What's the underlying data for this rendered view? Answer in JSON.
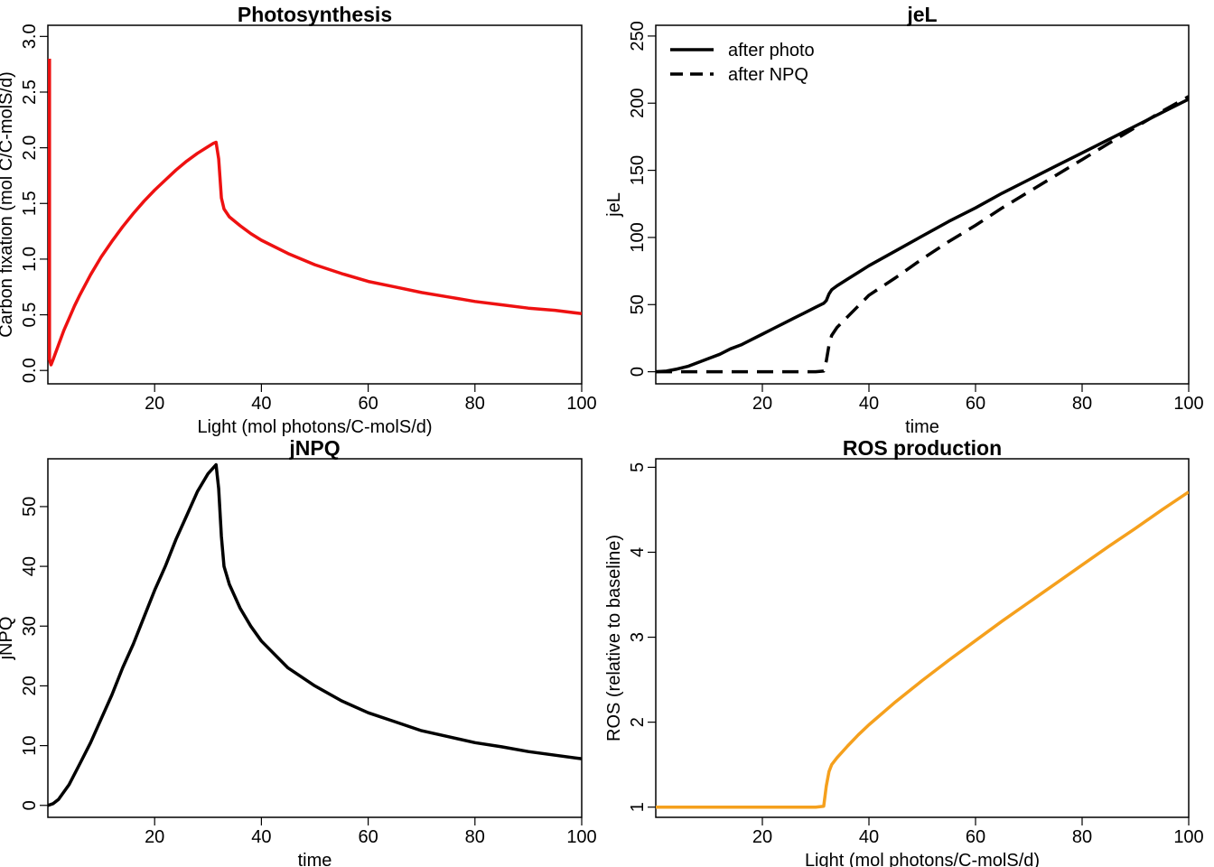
{
  "chart_data": [
    {
      "type": "line",
      "title": "Photosynthesis",
      "xlabel": "Light (mol photons/C-molS/d)",
      "ylabel": "Carbon fixation (mol C/C-molS/d)",
      "xlim": [
        0,
        100
      ],
      "ylim": [
        0,
        3.0
      ],
      "xticks": [
        "20",
        "40",
        "60",
        "80",
        "100"
      ],
      "yticks": [
        "0.0",
        "0.5",
        "1.0",
        "1.5",
        "2.0",
        "2.5",
        "3.0"
      ],
      "grid": false,
      "series": [
        {
          "color": "#ee1111",
          "style": "solid",
          "x": [
            0.3,
            0.3,
            0.6,
            1,
            2,
            3,
            4,
            5,
            6,
            8,
            10,
            12,
            14,
            16,
            18,
            20,
            22,
            24,
            26,
            28,
            30,
            31,
            31.5,
            32,
            32.5,
            33,
            34,
            36,
            38,
            40,
            45,
            50,
            55,
            60,
            65,
            70,
            75,
            80,
            85,
            90,
            95,
            100
          ],
          "y": [
            2.8,
            0.1,
            0.05,
            0.1,
            0.23,
            0.36,
            0.47,
            0.58,
            0.68,
            0.86,
            1.02,
            1.16,
            1.29,
            1.41,
            1.52,
            1.62,
            1.71,
            1.8,
            1.88,
            1.95,
            2.01,
            2.04,
            2.05,
            1.9,
            1.55,
            1.45,
            1.38,
            1.3,
            1.23,
            1.17,
            1.05,
            0.95,
            0.87,
            0.8,
            0.75,
            0.7,
            0.66,
            0.62,
            0.59,
            0.56,
            0.54,
            0.51
          ]
        }
      ]
    },
    {
      "type": "line",
      "title": "jeL",
      "xlabel": "time",
      "ylabel": "jeL",
      "xlim": [
        0,
        100
      ],
      "ylim": [
        0,
        250
      ],
      "xticks": [
        "20",
        "40",
        "60",
        "80",
        "100"
      ],
      "yticks": [
        "0",
        "50",
        "100",
        "150",
        "200",
        "250"
      ],
      "grid": false,
      "legend": "top-left",
      "series": [
        {
          "name": "after photo",
          "color": "#000000",
          "style": "solid",
          "x": [
            0,
            2,
            4,
            6,
            8,
            10,
            12,
            14,
            16,
            18,
            20,
            22,
            24,
            26,
            28,
            30,
            31.5,
            32,
            32.5,
            33,
            34,
            36,
            38,
            40,
            45,
            50,
            55,
            60,
            65,
            70,
            75,
            80,
            85,
            90,
            95,
            100
          ],
          "y": [
            0,
            0.5,
            2,
            4,
            7,
            10,
            13,
            17,
            20,
            24,
            28,
            32,
            36,
            40,
            44,
            48,
            51,
            53,
            58,
            61,
            64,
            69,
            74,
            79,
            90,
            101,
            112,
            122,
            133,
            143,
            153,
            163,
            173,
            183,
            193,
            203
          ]
        },
        {
          "name": "after NPQ",
          "color": "#000000",
          "style": "dashed",
          "x": [
            0,
            5,
            10,
            15,
            20,
            25,
            30,
            31.5,
            32,
            32.5,
            33,
            34,
            36,
            38,
            40,
            45,
            50,
            55,
            60,
            65,
            70,
            75,
            80,
            85,
            90,
            95,
            100
          ],
          "y": [
            0,
            0,
            0,
            0,
            0,
            0,
            0,
            0.5,
            8,
            20,
            27,
            33,
            41,
            49,
            57,
            70,
            84,
            97,
            109,
            122,
            134,
            146,
            158,
            170,
            182,
            194,
            205
          ]
        }
      ]
    },
    {
      "type": "line",
      "title": "jNPQ",
      "xlabel": "time",
      "ylabel": "jNPQ",
      "xlim": [
        0,
        100
      ],
      "ylim": [
        0,
        55
      ],
      "xticks": [
        "20",
        "40",
        "60",
        "80",
        "100"
      ],
      "yticks": [
        "0",
        "10",
        "20",
        "30",
        "40",
        "50"
      ],
      "grid": false,
      "series": [
        {
          "color": "#000000",
          "style": "solid",
          "x": [
            0,
            1,
            2,
            4,
            6,
            8,
            10,
            12,
            14,
            16,
            18,
            20,
            22,
            24,
            26,
            28,
            30,
            31,
            31.5,
            32,
            32.5,
            33,
            34,
            36,
            38,
            40,
            45,
            50,
            55,
            60,
            65,
            70,
            75,
            80,
            85,
            90,
            95,
            100
          ],
          "y": [
            0,
            0.3,
            1,
            3.5,
            7,
            10.5,
            14.5,
            18.5,
            23,
            27,
            31.5,
            36,
            40,
            44.5,
            48.5,
            52.5,
            55.5,
            56.5,
            57,
            53,
            45,
            40,
            37,
            33,
            30,
            27.5,
            23,
            20,
            17.5,
            15.5,
            14,
            12.5,
            11.5,
            10.5,
            9.8,
            9.0,
            8.4,
            7.8
          ]
        }
      ]
    },
    {
      "type": "line",
      "title": "ROS production",
      "xlabel": "Light (mol photons/C-molS/d)",
      "ylabel": "ROS (relative to baseline)",
      "xlim": [
        0,
        100
      ],
      "ylim": [
        1,
        5
      ],
      "xticks": [
        "20",
        "40",
        "60",
        "80",
        "100"
      ],
      "yticks": [
        "1",
        "2",
        "3",
        "4",
        "5"
      ],
      "grid": false,
      "series": [
        {
          "color": "#f5a01d",
          "style": "solid",
          "x": [
            0,
            5,
            10,
            15,
            20,
            25,
            30,
            31.5,
            32,
            32.5,
            33,
            34,
            36,
            38,
            40,
            45,
            50,
            55,
            60,
            65,
            70,
            75,
            80,
            85,
            90,
            95,
            100
          ],
          "y": [
            1,
            1,
            1,
            1,
            1,
            1,
            1,
            1.01,
            1.25,
            1.42,
            1.5,
            1.58,
            1.72,
            1.85,
            1.97,
            2.24,
            2.49,
            2.73,
            2.96,
            3.19,
            3.41,
            3.63,
            3.85,
            4.07,
            4.28,
            4.5,
            4.71
          ]
        }
      ]
    }
  ]
}
